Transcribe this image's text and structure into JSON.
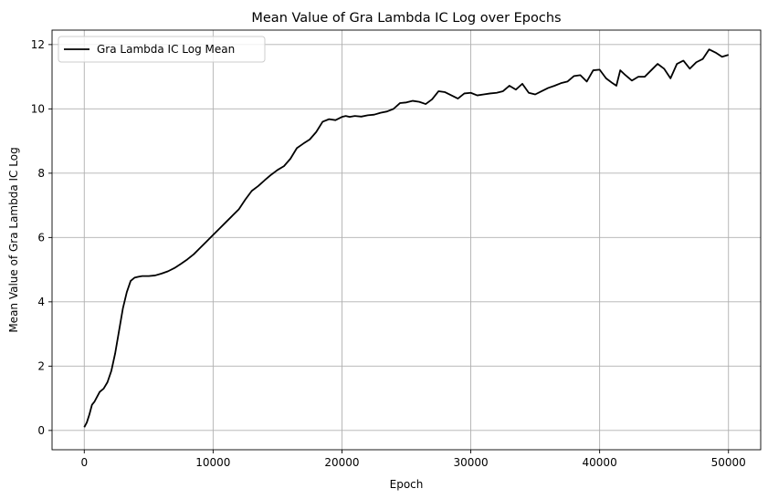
{
  "chart_data": {
    "type": "line",
    "title": "Mean Value of Gra Lambda IC Log over Epochs",
    "xlabel": "Epoch",
    "ylabel": "Mean Value of Gra Lambda IC Log",
    "xlim": [
      -2500,
      52500
    ],
    "ylim": [
      -0.6,
      12.45
    ],
    "xticks": [
      0,
      10000,
      20000,
      30000,
      40000,
      50000
    ],
    "yticks": [
      0,
      2,
      4,
      6,
      8,
      10,
      12
    ],
    "xtick_labels": [
      "0",
      "10000",
      "20000",
      "30000",
      "40000",
      "50000"
    ],
    "ytick_labels": [
      "0",
      "2",
      "4",
      "6",
      "8",
      "10",
      "12"
    ],
    "grid": true,
    "legend_position": "top-left",
    "colors": {
      "series": "#000000",
      "grid": "#b0b0b0"
    },
    "series": [
      {
        "name": "Gra Lambda IC Log Mean",
        "x": [
          0,
          200,
          400,
          600,
          800,
          1000,
          1200,
          1500,
          1800,
          2100,
          2400,
          2700,
          3000,
          3300,
          3600,
          3900,
          4200,
          4500,
          4800,
          5000,
          5500,
          6000,
          6500,
          7000,
          7500,
          8000,
          8500,
          9000,
          9500,
          10000,
          10500,
          11000,
          11500,
          12000,
          12500,
          13000,
          13500,
          14000,
          14500,
          15000,
          15500,
          16000,
          16500,
          17000,
          17500,
          18000,
          18500,
          19000,
          19500,
          20000,
          20300,
          20600,
          21000,
          21500,
          22000,
          22500,
          23000,
          23500,
          24000,
          24500,
          25000,
          25500,
          26000,
          26500,
          27000,
          27500,
          28000,
          28500,
          29000,
          29500,
          30000,
          30500,
          31000,
          31500,
          32000,
          32500,
          33000,
          33500,
          34000,
          34500,
          35000,
          35500,
          36000,
          36500,
          37000,
          37500,
          38000,
          38500,
          39000,
          39500,
          40000,
          40500,
          41000,
          41300,
          41600,
          42000,
          42500,
          43000,
          43500,
          44000,
          44500,
          45000,
          45500,
          46000,
          46500,
          47000,
          47500,
          48000,
          48500,
          49000,
          49500,
          50000
        ],
        "y": [
          0.1,
          0.25,
          0.5,
          0.8,
          0.9,
          1.05,
          1.2,
          1.3,
          1.5,
          1.85,
          2.4,
          3.1,
          3.8,
          4.3,
          4.65,
          4.75,
          4.78,
          4.8,
          4.8,
          4.8,
          4.82,
          4.88,
          4.95,
          5.05,
          5.18,
          5.32,
          5.48,
          5.68,
          5.88,
          6.08,
          6.28,
          6.48,
          6.68,
          6.88,
          7.18,
          7.45,
          7.6,
          7.78,
          7.95,
          8.1,
          8.22,
          8.45,
          8.78,
          8.92,
          9.05,
          9.28,
          9.6,
          9.68,
          9.65,
          9.75,
          9.78,
          9.75,
          9.78,
          9.76,
          9.8,
          9.82,
          9.88,
          9.92,
          10.0,
          10.18,
          10.2,
          10.25,
          10.22,
          10.15,
          10.3,
          10.55,
          10.52,
          10.42,
          10.32,
          10.48,
          10.5,
          10.42,
          10.45,
          10.48,
          10.5,
          10.55,
          10.72,
          10.6,
          10.78,
          10.5,
          10.45,
          10.55,
          10.65,
          10.72,
          10.8,
          10.85,
          11.02,
          11.05,
          10.85,
          11.2,
          11.22,
          10.95,
          10.8,
          10.72,
          11.2,
          11.05,
          10.88,
          11.0,
          11.0,
          11.2,
          11.4,
          11.25,
          10.95,
          11.4,
          11.5,
          11.25,
          11.45,
          11.55,
          11.85,
          11.75,
          11.62,
          11.68
        ]
      }
    ]
  }
}
